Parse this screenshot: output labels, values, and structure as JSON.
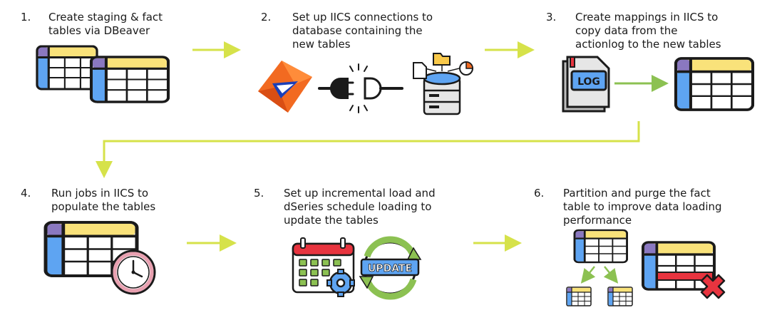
{
  "steps": [
    {
      "num": "1.",
      "text": "Create staging & fact\ntables via DBeaver"
    },
    {
      "num": "2.",
      "text": "Set up IICS connections to\ndatabase containing the\nnew tables"
    },
    {
      "num": "3.",
      "text": "Create mappings in IICS to\ncopy data from the\nactionlog to the new tables"
    },
    {
      "num": "4.",
      "text": "Run jobs in IICS to\npopulate the tables"
    },
    {
      "num": "5.",
      "text": "Set up incremental load and\ndSeries schedule loading to\nupdate the tables"
    },
    {
      "num": "6.",
      "text": "Partition and purge the fact\ntable to improve data loading\nperformance"
    }
  ],
  "icons": {
    "log_label": "LOG",
    "update_label": "UPDATE"
  },
  "colors": {
    "arrow": "#d6e24a",
    "table_header": "#f9e27a",
    "table_corner": "#8a78c0",
    "table_side": "#5ea4f2",
    "green_arrow": "#8cc152",
    "delete": "#e8343f",
    "informatica_orange": "#f26a21"
  }
}
